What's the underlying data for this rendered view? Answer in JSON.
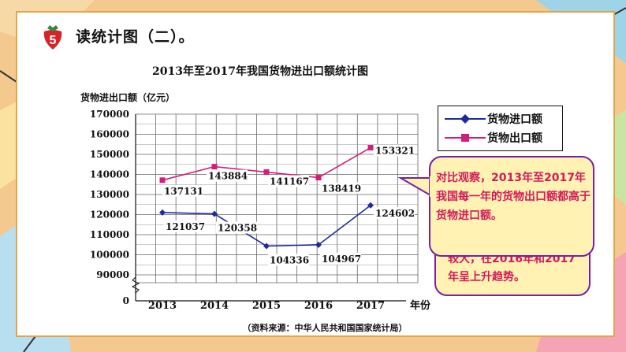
{
  "slide": {
    "badge_number": "5",
    "heading": "读统计图（二）。"
  },
  "chart_data": {
    "type": "line",
    "title": "2013年至2017年我国货物进出口额统计图",
    "ylabel": "货物进出口额（亿元）",
    "xlabel": "年份",
    "categories": [
      "2013",
      "2014",
      "2015",
      "2016",
      "2017"
    ],
    "y_ticks": [
      "170000",
      "160000",
      "150000",
      "140000",
      "130000",
      "120000",
      "110000",
      "100000",
      "90000",
      "0"
    ],
    "ylim": [
      90000,
      170000
    ],
    "axis_break": true,
    "grid": true,
    "legend_placement": "right",
    "series": [
      {
        "name": "货物进口额",
        "color": "#1f2a9a",
        "marker": "diamond",
        "values": [
          121037,
          120358,
          104336,
          104967,
          124602
        ],
        "labels": [
          "121037",
          "120358",
          "104336",
          "104967",
          "124602"
        ]
      },
      {
        "name": "货物出口额",
        "color": "#d81b7a",
        "marker": "square",
        "values": [
          137131,
          143884,
          141167,
          138419,
          153321
        ],
        "labels": [
          "137131",
          "143884",
          "141167",
          "138419",
          "153321"
        ]
      }
    ],
    "source": "（资料来源：中华人民共和国国家统计局）"
  },
  "callout": {
    "front_text": "对比观察，2013年至2017年我国每一年的货物出口额都高于货物进口额。",
    "back_text": "较大，在2016年和2017年呈上升趋势。"
  },
  "colors": {
    "accent_text": "#d21a5a",
    "callout_border": "#7b1ea0",
    "callout_fill": "#fff2b3",
    "frame": "#e2a64a"
  }
}
